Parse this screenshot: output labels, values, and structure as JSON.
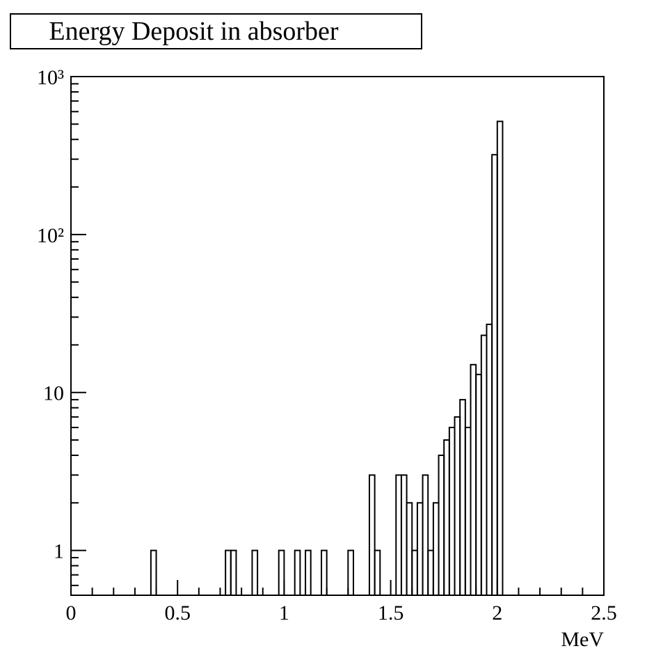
{
  "chart_data": {
    "type": "histogram",
    "title": "Energy Deposit in absorber",
    "xlabel": "MeV",
    "ylabel": "",
    "xlim": [
      0,
      2.5
    ],
    "ylim": [
      0.52,
      1000
    ],
    "yscale": "log",
    "grid": false,
    "legend": "none",
    "bin_width": 0.025,
    "x_ticks": [
      "0",
      "0.5",
      "1",
      "1.5",
      "2",
      "2.5"
    ],
    "y_ticks": [
      "1",
      "10",
      "10²",
      "10³"
    ],
    "bins": [
      {
        "x": 0.375,
        "y": 1
      },
      {
        "x": 0.725,
        "y": 1
      },
      {
        "x": 0.75,
        "y": 1
      },
      {
        "x": 0.85,
        "y": 1
      },
      {
        "x": 0.975,
        "y": 1
      },
      {
        "x": 1.05,
        "y": 1
      },
      {
        "x": 1.1,
        "y": 1
      },
      {
        "x": 1.175,
        "y": 1
      },
      {
        "x": 1.3,
        "y": 1
      },
      {
        "x": 1.4,
        "y": 3
      },
      {
        "x": 1.425,
        "y": 1
      },
      {
        "x": 1.525,
        "y": 3
      },
      {
        "x": 1.55,
        "y": 3
      },
      {
        "x": 1.575,
        "y": 2
      },
      {
        "x": 1.6,
        "y": 1
      },
      {
        "x": 1.625,
        "y": 2
      },
      {
        "x": 1.65,
        "y": 3
      },
      {
        "x": 1.675,
        "y": 1
      },
      {
        "x": 1.7,
        "y": 2
      },
      {
        "x": 1.725,
        "y": 4
      },
      {
        "x": 1.75,
        "y": 5
      },
      {
        "x": 1.775,
        "y": 6
      },
      {
        "x": 1.8,
        "y": 7
      },
      {
        "x": 1.825,
        "y": 9
      },
      {
        "x": 1.85,
        "y": 6
      },
      {
        "x": 1.875,
        "y": 15
      },
      {
        "x": 1.9,
        "y": 13
      },
      {
        "x": 1.925,
        "y": 23
      },
      {
        "x": 1.95,
        "y": 27
      },
      {
        "x": 1.975,
        "y": 320
      },
      {
        "x": 2.0,
        "y": 520
      }
    ]
  }
}
